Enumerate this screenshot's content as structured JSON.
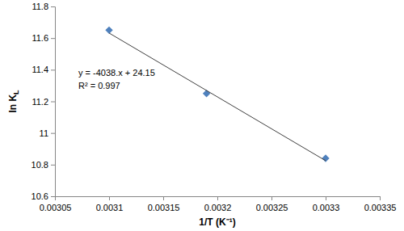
{
  "chart_data": {
    "type": "scatter",
    "x_label": "1/T (K⁻¹)",
    "y_label": "ln KL",
    "annotations": [
      "y = -4038.x + 24.15",
      "R² = 0.997"
    ],
    "series": [
      {
        "type": "scatter",
        "marker": "diamond",
        "color": "#4f81bd",
        "x": [
          0.0031,
          0.00319,
          0.0033
        ],
        "values": [
          11.65,
          11.25,
          10.84
        ]
      },
      {
        "type": "line",
        "line_style": "solid",
        "color": "#404040",
        "x": [
          0.0031,
          0.0033
        ],
        "values": [
          11.632,
          10.825
        ]
      }
    ],
    "xlim": [
      0.00305,
      0.00335
    ],
    "xticks": [
      0.00305,
      0.0031,
      0.00315,
      0.0032,
      0.00325,
      0.0033,
      0.00335
    ],
    "ylim": [
      10.6,
      11.8
    ],
    "yticks": [
      10.6,
      10.8,
      11,
      11.2,
      11.4,
      11.6,
      11.8
    ],
    "grid": false
  }
}
